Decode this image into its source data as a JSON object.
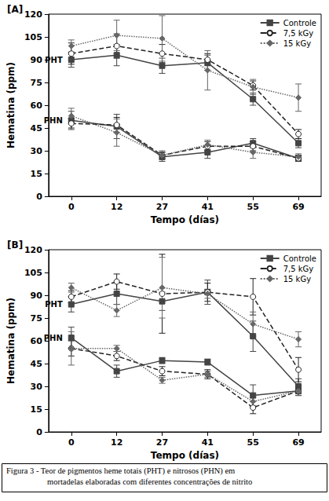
{
  "chart_data": [
    {
      "type": "line",
      "title": "[A]",
      "x_label": "Tempo (días)",
      "y_label": "Hematina (ppm)",
      "categories": [
        "0",
        "12",
        "27",
        "41",
        "55",
        "69"
      ],
      "ylim": [
        0,
        120
      ],
      "yticks": [
        0,
        15,
        30,
        45,
        60,
        75,
        90,
        105,
        120
      ],
      "grid": false,
      "legend": "upper right",
      "series": [
        {
          "name": "Controle",
          "group": "PHT",
          "color": "#444444",
          "marker": "square",
          "line_style": "solid",
          "values": [
            90,
            93,
            86,
            88,
            64,
            35
          ],
          "errors": [
            5,
            7,
            5,
            5,
            4,
            3
          ]
        },
        {
          "name": "7,5 kGy",
          "group": "PHT",
          "color": "#222222",
          "marker": "open_circle",
          "line_style": "dashed",
          "values": [
            94,
            99,
            94,
            90,
            73,
            41
          ],
          "errors": [
            7,
            8,
            6,
            4,
            3,
            3
          ]
        },
        {
          "name": "15 kGy",
          "group": "PHT",
          "color": "#666666",
          "marker": "diamond",
          "line_style": "dotted",
          "values": [
            99,
            106,
            104,
            83,
            72,
            65
          ],
          "errors": [
            4,
            10,
            15,
            13,
            5,
            9
          ]
        },
        {
          "name": "Controle",
          "group": "PHN",
          "color": "#444444",
          "marker": "square",
          "line_style": "solid",
          "values": [
            50,
            46,
            26,
            29,
            35,
            25
          ],
          "errors": [
            6,
            8,
            3,
            4,
            3,
            2
          ]
        },
        {
          "name": "7,5 kGy",
          "group": "PHN",
          "color": "#222222",
          "marker": "open_circle",
          "line_style": "dashed",
          "values": [
            48,
            47,
            27,
            33,
            33,
            25
          ],
          "errors": [
            3,
            5,
            2,
            3,
            3,
            2
          ]
        },
        {
          "name": "15 kGy",
          "group": "PHN",
          "color": "#666666",
          "marker": "diamond",
          "line_style": "dotted",
          "values": [
            53,
            42,
            27,
            34,
            29,
            26
          ],
          "errors": [
            5,
            9,
            3,
            3,
            4,
            2
          ]
        }
      ]
    },
    {
      "type": "line",
      "title": "[B]",
      "x_label": "Tempo (días)",
      "y_label": "Hematina (ppm)",
      "categories": [
        "0",
        "12",
        "27",
        "41",
        "55",
        "69"
      ],
      "ylim": [
        0,
        120
      ],
      "yticks": [
        0,
        15,
        30,
        45,
        60,
        75,
        90,
        105,
        120
      ],
      "grid": false,
      "legend": "upper right",
      "series": [
        {
          "name": "Controle",
          "group": "PHT",
          "color": "#444444",
          "marker": "square",
          "line_style": "solid",
          "values": [
            84,
            91,
            86,
            92,
            63,
            30
          ],
          "errors": [
            5,
            7,
            6,
            8,
            10,
            5
          ]
        },
        {
          "name": "7,5 kGy",
          "group": "PHT",
          "color": "#222222",
          "marker": "open_circle",
          "line_style": "dashed",
          "values": [
            89,
            99,
            91,
            92,
            89,
            41
          ],
          "errors": [
            4,
            5,
            26,
            6,
            12,
            8
          ]
        },
        {
          "name": "15 kGy",
          "group": "PHT",
          "color": "#666666",
          "marker": "diamond",
          "line_style": "dotted",
          "values": [
            95,
            80,
            95,
            91,
            71,
            61
          ],
          "errors": [
            3,
            4,
            20,
            3,
            8,
            5
          ]
        },
        {
          "name": "Controle",
          "group": "PHN",
          "color": "#444444",
          "marker": "square",
          "line_style": "solid",
          "values": [
            62,
            40,
            47,
            46,
            24,
            27
          ],
          "errors": [
            7,
            4,
            2,
            2,
            7,
            3
          ]
        },
        {
          "name": "7,5 kGy",
          "group": "PHN",
          "color": "#222222",
          "marker": "open_circle",
          "line_style": "dashed",
          "values": [
            55,
            50,
            40,
            38,
            16,
            27
          ],
          "errors": [
            5,
            3,
            3,
            3,
            4,
            3
          ]
        },
        {
          "name": "15 kGy",
          "group": "PHN",
          "color": "#666666",
          "marker": "diamond",
          "line_style": "dotted",
          "values": [
            55,
            55,
            34,
            38,
            20,
            27
          ],
          "errors": [
            11,
            2,
            2,
            2,
            3,
            3
          ]
        }
      ]
    }
  ],
  "caption": [
    "Figura 3 - Teor de pigmentos heme totais (PHT) e nitrosos (PHN) em",
    "mortadelas elaboradas com diferentes concentrações de nitrito"
  ]
}
